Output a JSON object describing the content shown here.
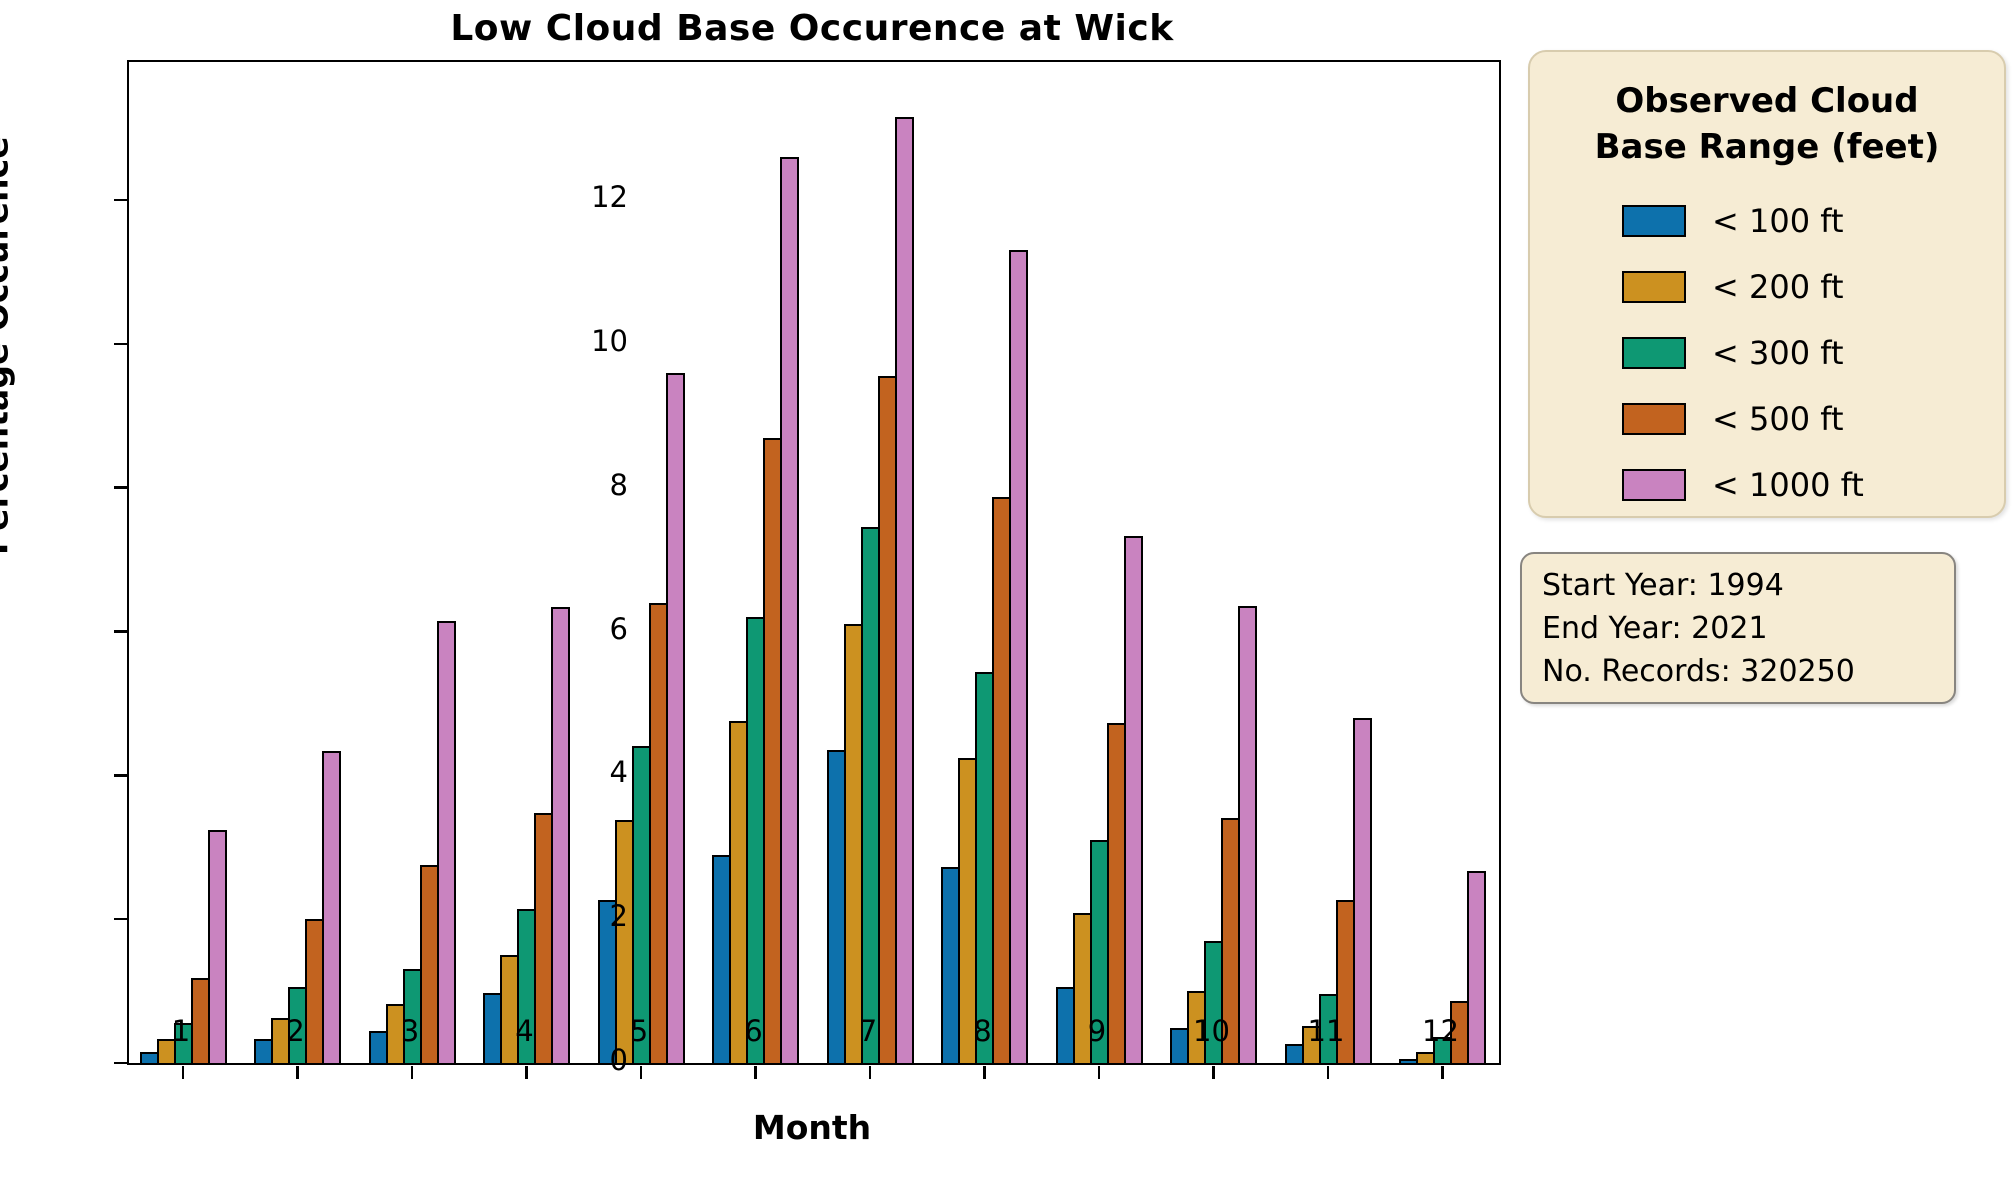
{
  "title": "Low Cloud Base Occurence at Wick",
  "axes": {
    "x_label": "Month",
    "y_label": "Percentage Occurence",
    "y_ticks": [
      0,
      2,
      4,
      6,
      8,
      10,
      12
    ],
    "x_tick_labels": [
      "1",
      "2",
      "3",
      "4",
      "5",
      "6",
      "7",
      "8",
      "9",
      "10",
      "11",
      "12"
    ]
  },
  "legend": {
    "title_line1": "Observed Cloud",
    "title_line2": "Base Range (feet)",
    "items": [
      {
        "label": "< 100 ft",
        "color": "#0d71ac"
      },
      {
        "label": "< 200 ft",
        "color": "#cc9120"
      },
      {
        "label": "< 300 ft",
        "color": "#0e9873"
      },
      {
        "label": "< 500 ft",
        "color": "#c2631f"
      },
      {
        "label": "< 1000 ft",
        "color": "#c983c0"
      }
    ]
  },
  "info_box": {
    "lines": [
      "Start Year: 1994",
      "End Year: 2021",
      "No. Records: 320250"
    ]
  },
  "chart_data": {
    "type": "bar",
    "title": "Low Cloud Base Occurence at Wick",
    "xlabel": "Month",
    "ylabel": "Percentage Occurence",
    "categories": [
      1,
      2,
      3,
      4,
      5,
      6,
      7,
      8,
      9,
      10,
      11,
      12
    ],
    "series": [
      {
        "name": "< 100 ft",
        "color": "#0d71ac",
        "values": [
          0.15,
          0.33,
          0.45,
          0.97,
          2.27,
          2.89,
          4.35,
          2.73,
          1.05,
          0.49,
          0.26,
          0.05
        ]
      },
      {
        "name": "< 200 ft",
        "color": "#cc9120",
        "values": [
          0.34,
          0.63,
          0.82,
          1.5,
          3.38,
          4.76,
          6.1,
          4.24,
          2.08,
          1.0,
          0.51,
          0.15
        ]
      },
      {
        "name": "< 300 ft",
        "color": "#0e9873",
        "values": [
          0.55,
          1.05,
          1.31,
          2.14,
          4.41,
          6.2,
          7.46,
          5.44,
          3.1,
          1.69,
          0.96,
          0.36
        ]
      },
      {
        "name": "< 500 ft",
        "color": "#c2631f",
        "values": [
          1.18,
          2.0,
          2.76,
          3.47,
          6.39,
          8.69,
          9.56,
          7.87,
          4.73,
          3.41,
          2.26,
          0.86
        ]
      },
      {
        "name": "< 1000 ft",
        "color": "#c983c0",
        "values": [
          3.24,
          4.34,
          6.14,
          6.34,
          9.59,
          12.6,
          13.16,
          11.3,
          7.33,
          6.36,
          4.8,
          2.67
        ]
      }
    ],
    "ylim": [
      0,
      13.92
    ],
    "grid": false,
    "legend_position": "outside-right",
    "legend_title": "Observed Cloud Base Range (feet)",
    "annotations": [
      "Start Year: 1994",
      "End Year: 2021",
      "No. Records: 320250"
    ]
  }
}
